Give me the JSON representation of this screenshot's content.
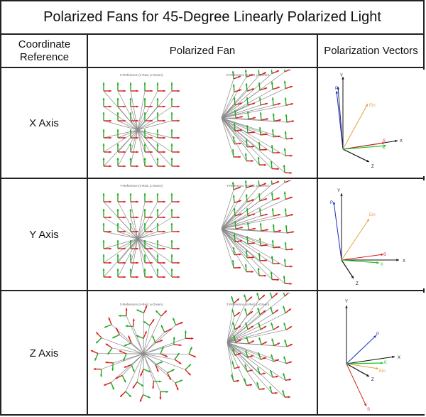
{
  "title": "Polarized Fans for 45-Degree Linearly Polarized Light",
  "headers": {
    "coord_ref": "Coordinate Reference",
    "fan": "Polarized Fan",
    "vectors": "Polarization Vectors"
  },
  "rows": [
    {
      "label": "X Axis",
      "fan_left_title": "X-Reference (s-Red, p-Green)",
      "fan_right_title": "X-Reference (s-Red, p-Green)",
      "vec": {
        "y": "Y",
        "x": "X",
        "z": "Z",
        "p": "P",
        "s": "S",
        "k": "K",
        "ein": "Ein"
      }
    },
    {
      "label": "Y Axis",
      "fan_left_title": "Y-Reference (s-Red, p-Green)",
      "fan_right_title": "Y-Reference (s-Red, p-Green)",
      "vec": {
        "y": "Y",
        "x": "X",
        "z": "Z",
        "p": "P",
        "s": "S",
        "k": "K",
        "ein": "Ein"
      }
    },
    {
      "label": "Z Axis",
      "fan_left_title": "Z-Reference (s-Red, p-Green)",
      "fan_right_title": "Z-Reference (s-Red, p-Green)",
      "vec": {
        "y": "Y",
        "x": "X",
        "z": "Z",
        "p": "P",
        "s": "S",
        "k": "K",
        "ein": "Ein"
      }
    }
  ],
  "colors": {
    "s": "#d62020",
    "p": "#22a822",
    "ray": "#8a8a8a",
    "vec_p": "#1a2fbf",
    "vec_ein": "#e8a040",
    "vec_s": "#d62020",
    "vec_k": "#22c622",
    "axis": "#111111"
  }
}
